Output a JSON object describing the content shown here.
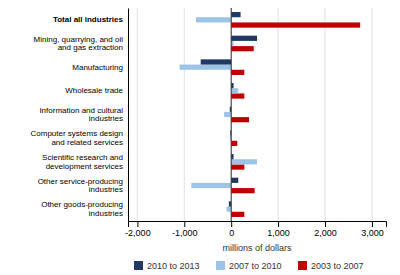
{
  "chart_data": {
    "type": "bar",
    "orientation": "horizontal",
    "categories": [
      "Other goods-producing industries",
      "Other service-producing industries",
      "Scientific research and development services",
      "Computer systems design and related services",
      "Information and cultural industries",
      "Wholesale trade",
      "Manufacturing",
      "Mining, quarrying, and oil and gas extraction",
      "Total all industries"
    ],
    "series": [
      {
        "name": "2003 to 2007",
        "color": "#c00000",
        "values": [
          280,
          500,
          280,
          130,
          380,
          280,
          280,
          480,
          2750
        ]
      },
      {
        "name": "2007 to 2010",
        "color": "#9dc3e6",
        "values": [
          -100,
          -850,
          550,
          -30,
          -150,
          150,
          -1100,
          50,
          -750
        ]
      },
      {
        "name": "2010 to 2013",
        "color": "#1f3864",
        "values": [
          -50,
          150,
          50,
          -20,
          -30,
          50,
          -650,
          550,
          200
        ]
      }
    ],
    "xlabel": "millions of dollars",
    "xlim": [
      -2200,
      3300
    ],
    "xticks": [
      {
        "value": -2000,
        "label": "-2,000"
      },
      {
        "value": -1000,
        "label": "-1,000"
      },
      0,
      {
        "value": 1000,
        "label": "1,000"
      },
      {
        "value": 2000,
        "label": "2,000"
      },
      {
        "value": 3000,
        "label": "3,000"
      }
    ],
    "grid": true,
    "legend": "bottom"
  }
}
